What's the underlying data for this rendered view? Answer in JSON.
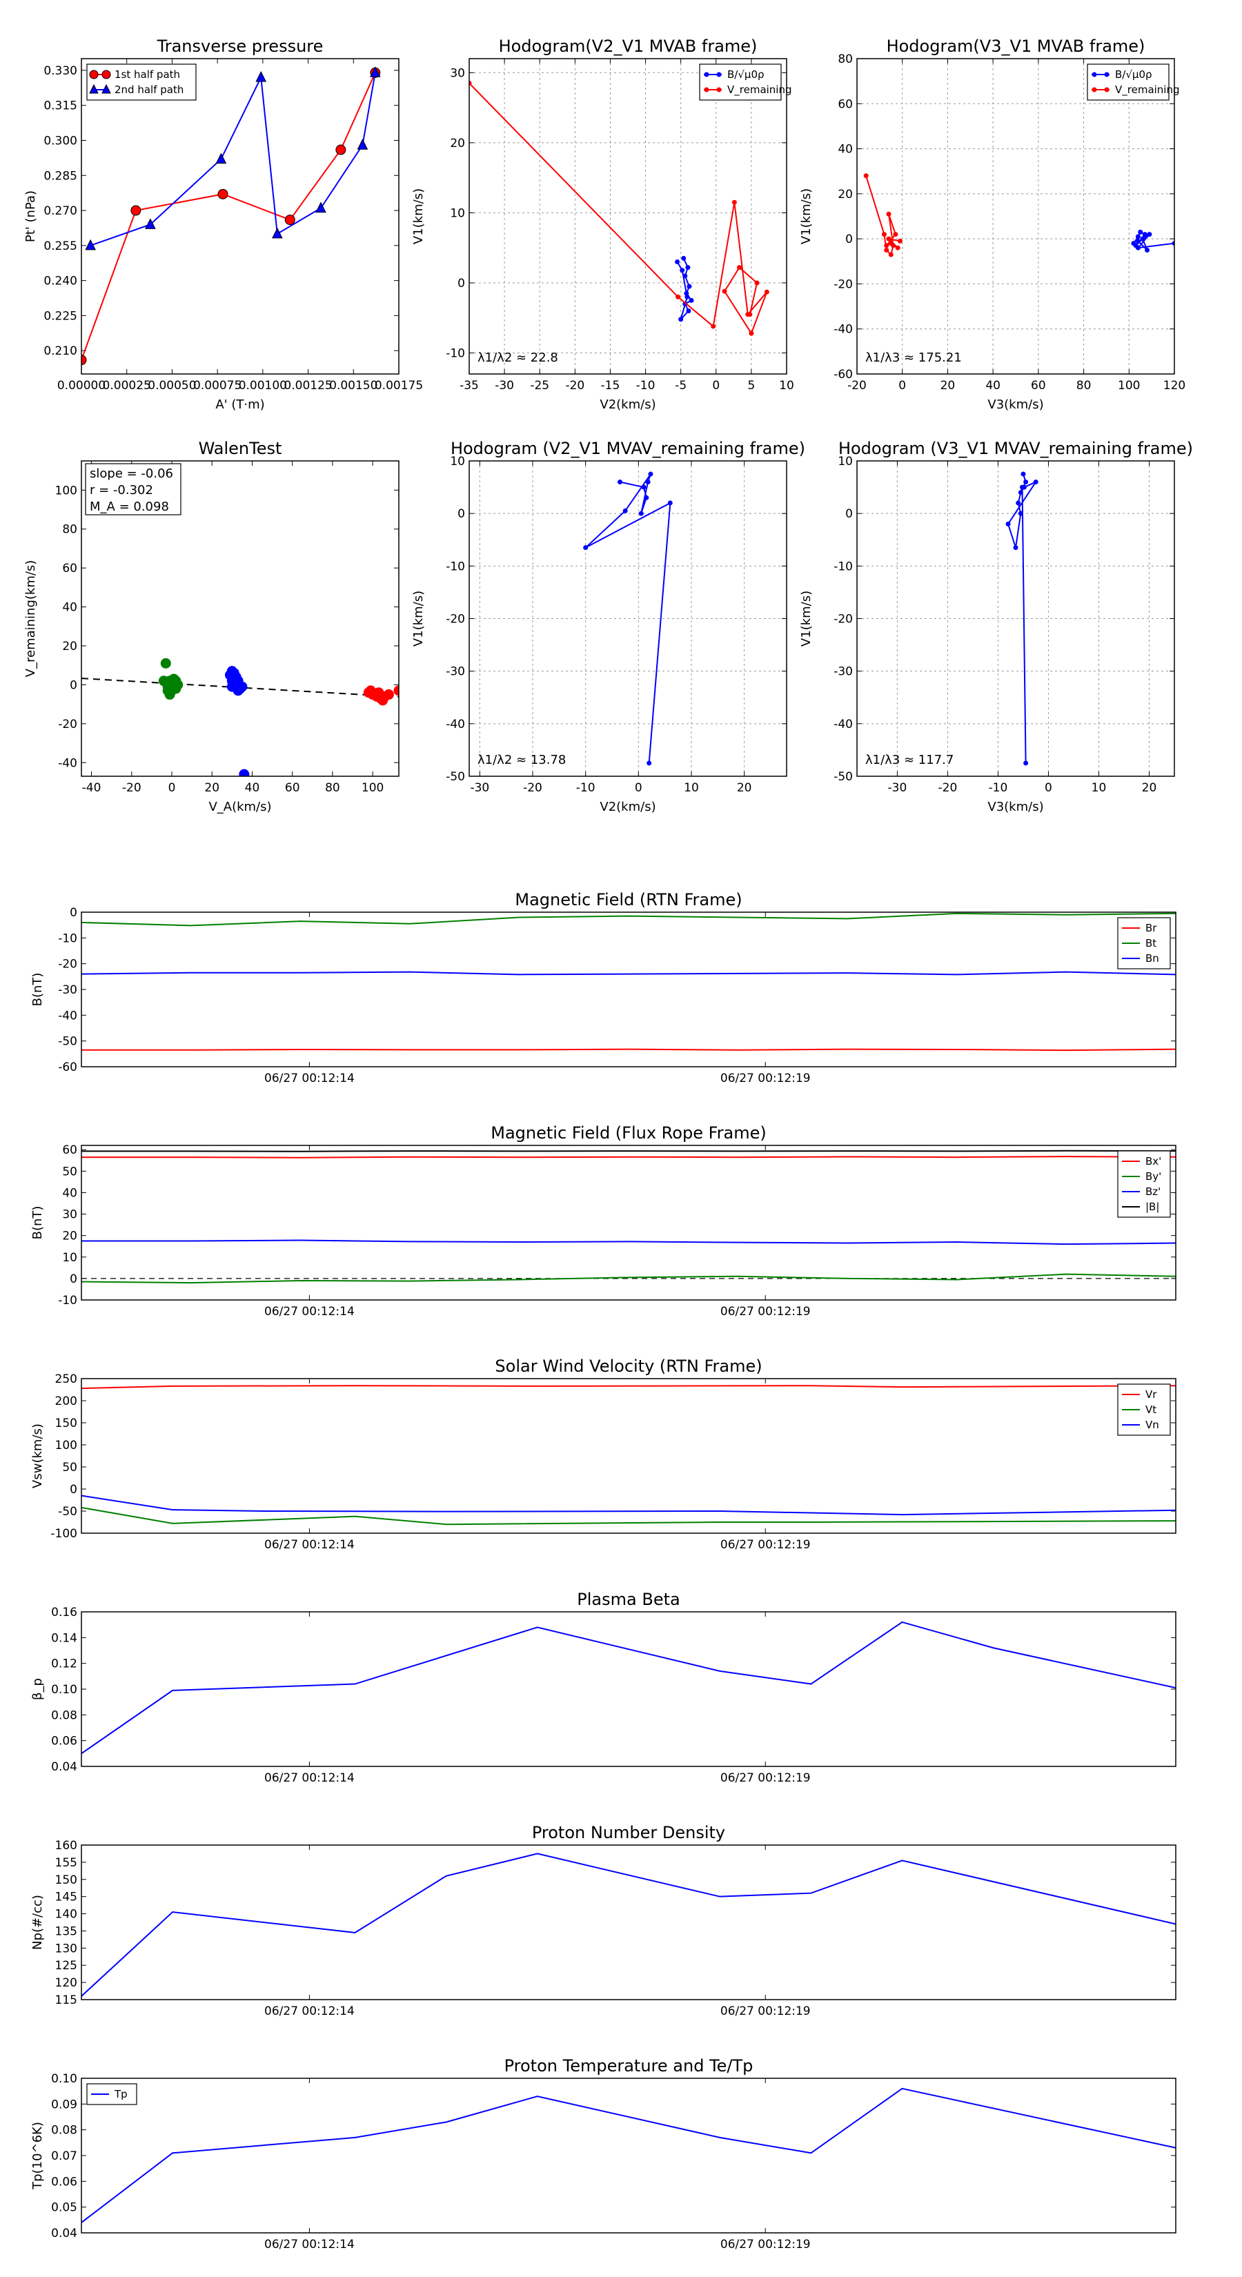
{
  "colors": {
    "red": "#ff0000",
    "blue": "#0000ff",
    "green": "#008000",
    "black": "#000000",
    "grid": "#aaaaaa"
  },
  "chart_data": [
    {
      "id": "tp",
      "type": "scatter",
      "title": "Transverse pressure",
      "xlabel": "A' (T·m)",
      "ylabel": "Pt' (nPa)",
      "xlim": [
        0,
        0.00175
      ],
      "ylim": [
        0.2,
        0.335
      ],
      "xticks": [
        0,
        0.00025,
        0.0005,
        0.00075,
        0.001,
        0.00125,
        0.0015,
        0.00175
      ],
      "xtick_labels": [
        "0.00000",
        "0.00025",
        "0.00050",
        "0.00075",
        "0.00100",
        "0.00125",
        "0.00150",
        "0.00175"
      ],
      "yticks": [
        0.21,
        0.225,
        0.24,
        0.255,
        0.27,
        0.285,
        0.3,
        0.315,
        0.33
      ],
      "ytick_labels": [
        "0.210",
        "0.225",
        "0.240",
        "0.255",
        "0.270",
        "0.285",
        "0.300",
        "0.315",
        "0.330"
      ],
      "legend": "top-left",
      "grid": false,
      "series": [
        {
          "name": "1st half path",
          "color": "red",
          "marker": "circle",
          "x": [
            0.0,
            0.0003,
            0.00078,
            0.00115,
            0.00143,
            0.00162
          ],
          "y": [
            0.206,
            0.27,
            0.277,
            0.266,
            0.296,
            0.329
          ]
        },
        {
          "name": "2nd half path",
          "color": "blue",
          "marker": "triangle",
          "x": [
            5e-05,
            0.00038,
            0.00077,
            0.00099,
            0.00108,
            0.00132,
            0.00155,
            0.00162
          ],
          "y": [
            0.255,
            0.264,
            0.292,
            0.327,
            0.26,
            0.271,
            0.298,
            0.329
          ]
        }
      ]
    },
    {
      "id": "h1",
      "type": "line",
      "title": "Hodogram(V2_V1 MVAB frame)",
      "xlabel": "V2(km/s)",
      "ylabel": "V1(km/s)",
      "xlim": [
        -35,
        10
      ],
      "ylim": [
        -13,
        32
      ],
      "xticks": [
        -35,
        -30,
        -25,
        -20,
        -15,
        -10,
        -5,
        0,
        5,
        10
      ],
      "yticks": [
        -10,
        0,
        10,
        20,
        30
      ],
      "grid": true,
      "legend": "top-right",
      "annotation": "λ1/λ2 ≈ 22.8",
      "series": [
        {
          "name": "B/√μ0ρ",
          "color": "blue",
          "markers": true,
          "x": [
            -4.6,
            -4.0,
            -4.4,
            -3.8,
            -4.2,
            -3.5,
            -4.4,
            -3.9,
            -5.0,
            -4.1,
            -4.8,
            -5.5
          ],
          "y": [
            3.5,
            2.2,
            1.0,
            -0.5,
            -1.5,
            -2.5,
            -3.0,
            -4.0,
            -5.2,
            -2.0,
            1.8,
            3.0
          ]
        },
        {
          "name": "V_remaining",
          "color": "red",
          "markers": true,
          "x": [
            -35,
            -5.4,
            -0.4,
            2.6,
            4.5,
            7.2,
            5.0,
            1.2,
            3.3,
            5.8,
            4.8
          ],
          "y": [
            28.5,
            -2.0,
            -6.2,
            11.5,
            -4.5,
            -1.3,
            -7.2,
            -1.2,
            2.2,
            0.0,
            -4.5
          ]
        }
      ]
    },
    {
      "id": "h2",
      "type": "line",
      "title": "Hodogram(V3_V1 MVAB frame)",
      "xlabel": "V3(km/s)",
      "ylabel": "V1(km/s)",
      "xlim": [
        -20,
        120
      ],
      "ylim": [
        -60,
        80
      ],
      "xticks": [
        -20,
        0,
        20,
        40,
        60,
        80,
        100,
        120
      ],
      "yticks": [
        -60,
        -40,
        -20,
        0,
        20,
        40,
        60,
        80
      ],
      "grid": true,
      "legend": "top-right",
      "annotation": "λ1/λ3 ≈ 175.21",
      "series": [
        {
          "name": "B/√μ0ρ",
          "color": "blue",
          "markers": true,
          "x": [
            102,
            104,
            105,
            107,
            106,
            108,
            104,
            103,
            107,
            109,
            104,
            120
          ],
          "y": [
            -2,
            1,
            3,
            2,
            0,
            -5,
            -1,
            -3,
            1,
            2,
            -4,
            -2
          ]
        },
        {
          "name": "V_remaining",
          "color": "red",
          "markers": true,
          "x": [
            -16,
            -8,
            -7,
            -5,
            -4,
            -6,
            -3,
            -7,
            -5,
            -2,
            -6,
            -1
          ],
          "y": [
            28,
            2,
            -5,
            -7,
            -3,
            11,
            2,
            -3,
            -2,
            -4,
            0,
            -1
          ]
        }
      ]
    },
    {
      "id": "walen",
      "type": "scatter",
      "title": "WalenTest",
      "xlabel": "V_A(km/s)",
      "ylabel": "V_remaining(km/s)",
      "xlim": [
        -45,
        113
      ],
      "ylim": [
        -47,
        115
      ],
      "xticks": [
        -40,
        -20,
        0,
        20,
        40,
        60,
        80,
        100
      ],
      "yticks": [
        -40,
        -20,
        0,
        20,
        40,
        60,
        80,
        100
      ],
      "grid": false,
      "info": {
        "slope": "slope = -0.06",
        "r": "r = -0.302",
        "ma": "M_A = 0.098"
      },
      "fit": {
        "slope": -0.06,
        "intercept": 0.6
      },
      "groups": [
        {
          "color": "green",
          "x": [
            -3,
            -1,
            0,
            1,
            2,
            -2,
            0,
            3,
            -4,
            1,
            -2,
            0,
            2,
            -1
          ],
          "y": [
            11,
            2,
            -1,
            0,
            2,
            -3,
            1,
            0,
            2,
            3,
            -1,
            -3,
            -2,
            -5
          ]
        },
        {
          "color": "blue",
          "x": [
            30,
            31,
            32,
            33,
            31,
            30,
            32,
            34,
            29,
            31,
            33,
            35,
            30,
            32,
            36
          ],
          "y": [
            7,
            6,
            4,
            2,
            0,
            -1,
            1,
            -2,
            5,
            3,
            -3,
            -1,
            2,
            0,
            -46
          ]
        },
        {
          "color": "red",
          "x": [
            98,
            100,
            102,
            104,
            101,
            106,
            108,
            103,
            99,
            105,
            113
          ],
          "y": [
            -4,
            -5,
            -6,
            -7,
            -5,
            -6,
            -5,
            -4,
            -3,
            -8,
            -3
          ]
        }
      ]
    },
    {
      "id": "h3",
      "type": "line",
      "title": "Hodogram (V2_V1 MVAV_remaining frame)",
      "xlabel": "V2(km/s)",
      "ylabel": "V1(km/s)",
      "xlim": [
        -32,
        28
      ],
      "ylim": [
        -50,
        10
      ],
      "xticks": [
        -30,
        -20,
        -10,
        0,
        10,
        20
      ],
      "yticks": [
        -50,
        -40,
        -30,
        -20,
        -10,
        0,
        10
      ],
      "grid": true,
      "annotation": "λ1/λ2 ≈ 13.78",
      "series": [
        {
          "name": "",
          "color": "blue",
          "markers": true,
          "x": [
            -3.5,
            1.0,
            1.5,
            0.5,
            1.8,
            2.3,
            -2.5,
            -10,
            6,
            2.0
          ],
          "y": [
            6,
            5,
            3,
            0,
            6,
            7.5,
            0.5,
            -6.5,
            2,
            -47.5
          ]
        }
      ]
    },
    {
      "id": "h4",
      "type": "line",
      "title": "Hodogram (V3_V1 MVAV_remaining frame)",
      "xlabel": "V3(km/s)",
      "ylabel": "V1(km/s)",
      "xlim": [
        -38,
        25
      ],
      "ylim": [
        -50,
        10
      ],
      "xticks": [
        -30,
        -20,
        -10,
        0,
        10,
        20
      ],
      "yticks": [
        -50,
        -40,
        -30,
        -20,
        -10,
        0,
        10
      ],
      "grid": true,
      "annotation": "λ1/λ3 ≈ 117.7",
      "series": [
        {
          "name": "",
          "color": "blue",
          "markers": true,
          "x": [
            -5,
            -4.5,
            -5.5,
            -4.8,
            -2.5,
            -8,
            -6.5,
            -5.5,
            -6,
            -5.2,
            -4.5
          ],
          "y": [
            7.5,
            6,
            4,
            5,
            6,
            -2,
            -6.5,
            0,
            2,
            5,
            -47.5
          ]
        }
      ]
    },
    {
      "id": "mag_rtn",
      "type": "line",
      "title": "Magnetic Field (RTN Frame)",
      "ylabel": "B(nT)",
      "ylim": [
        -60,
        0
      ],
      "yticks": [
        -60,
        -50,
        -40,
        -30,
        -20,
        -10,
        0
      ],
      "xticks": [
        2.5,
        7.5
      ],
      "xtick_labels": [
        "06/27 00:12:14",
        "06/27 00:12:19"
      ],
      "xlim": [
        0,
        12
      ],
      "legend": "top-right",
      "series": [
        {
          "name": "Br",
          "color": "red",
          "values": [
            -53.5,
            -53.5,
            -53.3,
            -53.4,
            -53.4,
            -53.2,
            -53.5,
            -53.2,
            -53.3,
            -53.6,
            -53.2
          ]
        },
        {
          "name": "Bt",
          "color": "green",
          "values": [
            -4.0,
            -5.2,
            -3.5,
            -4.5,
            -2.0,
            -1.5,
            -2.0,
            -2.5,
            -0.5,
            -1.0,
            -0.5
          ]
        },
        {
          "name": "Bn",
          "color": "blue",
          "values": [
            -24.0,
            -23.5,
            -23.5,
            -23.2,
            -24.2,
            -24.0,
            -23.8,
            -23.6,
            -24.2,
            -23.2,
            -24.2
          ]
        }
      ]
    },
    {
      "id": "mag_fr",
      "type": "line",
      "title": "Magnetic Field (Flux Rope Frame)",
      "ylabel": "B(nT)",
      "ylim": [
        -10,
        62
      ],
      "yticks": [
        -10,
        0,
        10,
        20,
        30,
        40,
        50,
        60
      ],
      "xticks": [
        2.5,
        7.5
      ],
      "xtick_labels": [
        "06/27 00:12:14",
        "06/27 00:12:19"
      ],
      "xlim": [
        0,
        12
      ],
      "legend": "top-right",
      "zero_line": true,
      "series": [
        {
          "name": "Bx'",
          "color": "red",
          "values": [
            56.5,
            56.5,
            56.3,
            56.6,
            56.5,
            56.6,
            56.5,
            56.7,
            56.5,
            56.8,
            56.6
          ]
        },
        {
          "name": "By'",
          "color": "green",
          "values": [
            -1.5,
            -2.0,
            -1.0,
            -1.2,
            -0.5,
            0.5,
            1.0,
            0.0,
            -0.5,
            2.0,
            1.0
          ]
        },
        {
          "name": "Bz'",
          "color": "blue",
          "values": [
            17.5,
            17.5,
            17.8,
            17.2,
            17.0,
            17.2,
            16.8,
            16.5,
            17.0,
            16.0,
            16.5
          ]
        },
        {
          "name": "|B|",
          "color": "black",
          "values": [
            59.3,
            59.3,
            59.2,
            59.4,
            59.3,
            59.4,
            59.3,
            59.4,
            59.3,
            59.5,
            59.4
          ]
        }
      ]
    },
    {
      "id": "sw",
      "type": "line",
      "title": "Solar Wind Velocity (RTN Frame)",
      "ylabel": "Vsw(km/s)",
      "ylim": [
        -100,
        250
      ],
      "yticks": [
        -100,
        -50,
        0,
        50,
        100,
        150,
        200,
        250
      ],
      "xticks": [
        2.5,
        7.5
      ],
      "xtick_labels": [
        "06/27 00:12:14",
        "06/27 00:12:19"
      ],
      "xlim": [
        0,
        12
      ],
      "legend": "top-right",
      "series": [
        {
          "name": "Vr",
          "color": "red",
          "x": [
            0,
            1,
            3,
            5,
            8,
            9,
            12
          ],
          "values": [
            228,
            233,
            234,
            233,
            234,
            231,
            234
          ]
        },
        {
          "name": "Vt",
          "color": "green",
          "x": [
            0,
            1,
            3,
            4,
            7,
            8,
            12
          ],
          "values": [
            -42,
            -78,
            -62,
            -80,
            -75,
            -75,
            -72
          ]
        },
        {
          "name": "Vn",
          "color": "blue",
          "x": [
            0,
            1,
            2,
            4,
            7,
            9,
            12
          ],
          "values": [
            -15,
            -47,
            -50,
            -51,
            -50,
            -58,
            -48
          ]
        }
      ]
    },
    {
      "id": "beta",
      "type": "line",
      "title": "Plasma Beta",
      "ylabel": "β_p",
      "ylim": [
        0.04,
        0.16
      ],
      "yticks": [
        0.04,
        0.06,
        0.08,
        0.1,
        0.12,
        0.14,
        0.16
      ],
      "ytick_labels": [
        "0.04",
        "0.06",
        "0.08",
        "0.10",
        "0.12",
        "0.14",
        "0.16"
      ],
      "xticks": [
        2.5,
        7.5
      ],
      "xtick_labels": [
        "06/27 00:12:14",
        "06/27 00:12:19"
      ],
      "xlim": [
        0,
        12
      ],
      "series": [
        {
          "name": "beta",
          "color": "blue",
          "x": [
            0,
            1,
            3,
            5,
            7,
            8,
            9,
            10,
            12
          ],
          "values": [
            0.05,
            0.099,
            0.104,
            0.148,
            0.114,
            0.104,
            0.152,
            0.132,
            0.101
          ]
        }
      ]
    },
    {
      "id": "np",
      "type": "line",
      "title": "Proton Number Density",
      "ylabel": "Np(#/cc)",
      "ylim": [
        115,
        160
      ],
      "yticks": [
        115,
        120,
        125,
        130,
        135,
        140,
        145,
        150,
        155,
        160
      ],
      "xticks": [
        2.5,
        7.5
      ],
      "xtick_labels": [
        "06/27 00:12:14",
        "06/27 00:12:19"
      ],
      "xlim": [
        0,
        12
      ],
      "series": [
        {
          "name": "Np",
          "color": "blue",
          "x": [
            0,
            1,
            3,
            4,
            5,
            7,
            8,
            9,
            12
          ],
          "values": [
            116,
            140.5,
            134.5,
            151,
            157.5,
            145,
            146,
            155.5,
            137
          ]
        }
      ]
    },
    {
      "id": "temp",
      "type": "line",
      "title": "Proton Temperature and Te/Tp",
      "ylabel": "Tp(10^6K)",
      "ylim": [
        0.04,
        0.1
      ],
      "yticks": [
        0.04,
        0.05,
        0.06,
        0.07,
        0.08,
        0.09,
        0.1
      ],
      "ytick_labels": [
        "0.04",
        "0.05",
        "0.06",
        "0.07",
        "0.08",
        "0.09",
        "0.10"
      ],
      "xticks": [
        2.5,
        7.5
      ],
      "xtick_labels": [
        "06/27 00:12:14",
        "06/27 00:12:19"
      ],
      "xlim": [
        0,
        12
      ],
      "legend": "top-left",
      "series": [
        {
          "name": "Tp",
          "color": "blue",
          "x": [
            0,
            1,
            3,
            4,
            5,
            7,
            8,
            9,
            12
          ],
          "values": [
            0.044,
            0.071,
            0.077,
            0.083,
            0.093,
            0.077,
            0.071,
            0.096,
            0.073
          ]
        }
      ]
    }
  ]
}
